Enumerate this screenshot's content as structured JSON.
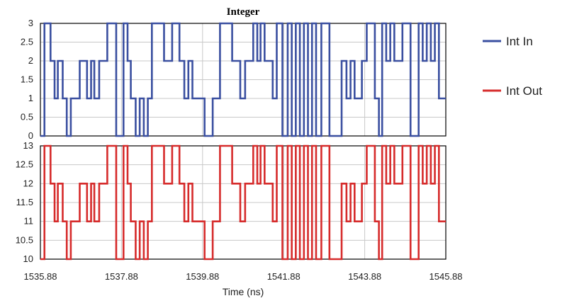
{
  "chart_data": {
    "type": "line",
    "title": "Integer",
    "xlabel": "Time (ns)",
    "x_ticks": [
      "1535.88",
      "1537.88",
      "1539.88",
      "1541.88",
      "1543.88",
      "1545.88"
    ],
    "xlim": [
      1535.88,
      1545.88
    ],
    "grid": true,
    "legend_position": "right",
    "panels": [
      {
        "ylim": [
          0,
          3
        ],
        "y_ticks": [
          "0",
          "0.5",
          "1",
          "1.5",
          "2",
          "2.5",
          "3"
        ],
        "series": [
          {
            "name": "Int In",
            "color": "#3a4fa0",
            "x": [
              1535.88,
              1535.98,
              1536.13,
              1536.23,
              1536.31,
              1536.43,
              1536.53,
              1536.63,
              1536.73,
              1536.85,
              1537.03,
              1537.13,
              1537.21,
              1537.33,
              1537.43,
              1537.53,
              1537.65,
              1537.75,
              1537.93,
              1538.03,
              1538.11,
              1538.23,
              1538.33,
              1538.43,
              1538.53,
              1538.63,
              1538.81,
              1538.93,
              1539.03,
              1539.13,
              1539.31,
              1539.43,
              1539.53,
              1539.63,
              1539.81,
              1539.93,
              1540.13,
              1540.31,
              1540.43,
              1540.61,
              1540.81,
              1540.93,
              1541.13,
              1541.23,
              1541.31,
              1541.41,
              1541.61,
              1541.71,
              1541.85,
              1541.98,
              1542.08,
              1542.18,
              1542.28,
              1542.38,
              1542.48,
              1542.58,
              1542.68,
              1542.81,
              1543.01,
              1543.11,
              1543.31,
              1543.43,
              1543.53,
              1543.63,
              1543.81,
              1543.93,
              1544.13,
              1544.23,
              1544.31,
              1544.41,
              1544.51,
              1544.61,
              1544.81,
              1545.01,
              1545.21,
              1545.31,
              1545.41,
              1545.51,
              1545.61,
              1545.71,
              1545.88
            ],
            "y": [
              0,
              3,
              2,
              1,
              2,
              1,
              0,
              1,
              1,
              2,
              1,
              2,
              1,
              2,
              2,
              3,
              3,
              0,
              3,
              2,
              1,
              0,
              1,
              0,
              1,
              3,
              3,
              2,
              2,
              3,
              2,
              1,
              2,
              1,
              1,
              0,
              1,
              3,
              3,
              2,
              1,
              2,
              3,
              2,
              3,
              2,
              1,
              3,
              0,
              3,
              0,
              3,
              0,
              3,
              0,
              3,
              0,
              3,
              0,
              0,
              2,
              1,
              2,
              1,
              2,
              3,
              1,
              0,
              3,
              2,
              3,
              2,
              3,
              0,
              3,
              2,
              3,
              2,
              3,
              1,
              1
            ]
          }
        ]
      },
      {
        "ylim": [
          10,
          13
        ],
        "y_ticks": [
          "10",
          "10.5",
          "11",
          "11.5",
          "12",
          "12.5",
          "13"
        ],
        "series": [
          {
            "name": "Int Out",
            "color": "#d62b2b",
            "x": [
              1535.88,
              1535.98,
              1536.13,
              1536.23,
              1536.31,
              1536.43,
              1536.53,
              1536.63,
              1536.73,
              1536.85,
              1537.03,
              1537.13,
              1537.21,
              1537.33,
              1537.43,
              1537.53,
              1537.65,
              1537.75,
              1537.93,
              1538.03,
              1538.11,
              1538.23,
              1538.33,
              1538.43,
              1538.53,
              1538.63,
              1538.81,
              1538.93,
              1539.03,
              1539.13,
              1539.31,
              1539.43,
              1539.53,
              1539.63,
              1539.81,
              1539.93,
              1540.13,
              1540.31,
              1540.43,
              1540.61,
              1540.81,
              1540.93,
              1541.13,
              1541.23,
              1541.31,
              1541.41,
              1541.61,
              1541.71,
              1541.85,
              1541.98,
              1542.08,
              1542.18,
              1542.28,
              1542.38,
              1542.48,
              1542.58,
              1542.68,
              1542.81,
              1543.01,
              1543.11,
              1543.31,
              1543.43,
              1543.53,
              1543.63,
              1543.81,
              1543.93,
              1544.13,
              1544.23,
              1544.31,
              1544.41,
              1544.51,
              1544.61,
              1544.81,
              1545.01,
              1545.21,
              1545.31,
              1545.41,
              1545.51,
              1545.61,
              1545.71,
              1545.88
            ],
            "y": [
              10,
              13,
              12,
              11,
              12,
              11,
              10,
              11,
              11,
              12,
              11,
              12,
              11,
              12,
              12,
              13,
              13,
              10,
              13,
              12,
              11,
              10,
              11,
              10,
              11,
              13,
              13,
              12,
              12,
              13,
              12,
              11,
              12,
              11,
              11,
              10,
              11,
              13,
              13,
              12,
              11,
              12,
              13,
              12,
              13,
              12,
              11,
              13,
              10,
              13,
              10,
              13,
              10,
              13,
              10,
              13,
              10,
              13,
              10,
              10,
              12,
              11,
              12,
              11,
              12,
              13,
              11,
              10,
              13,
              12,
              13,
              12,
              13,
              10,
              13,
              12,
              13,
              12,
              13,
              11,
              11
            ]
          }
        ]
      }
    ]
  }
}
